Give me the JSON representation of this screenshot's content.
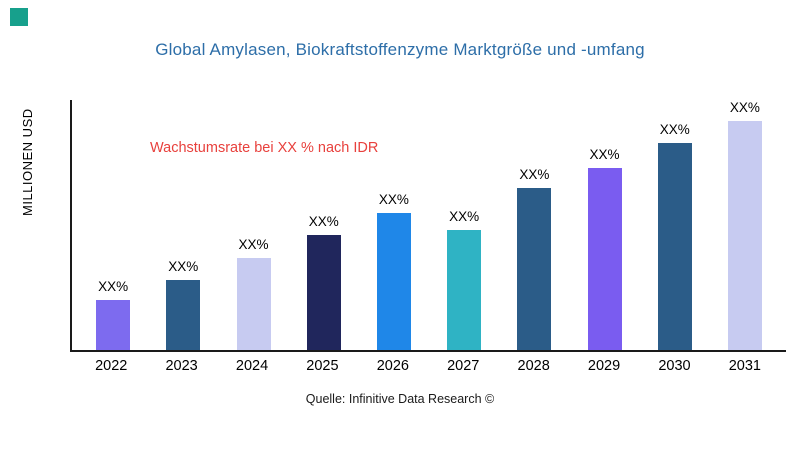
{
  "brand": {
    "square_color": "#17a08c"
  },
  "chart_data": {
    "type": "bar",
    "title": "Global Amylasen, Biokraftstoffenzyme Marktgröße und -umfang",
    "title_color": "#2d6ea8",
    "ylabel": "MILLIONEN USD",
    "xlabel": "",
    "annotation": "Wachstumsrate bei XX % nach IDR",
    "annotation_color": "#e8413d",
    "source": "Quelle: Infinitive Data Research ©",
    "categories": [
      "2022",
      "2023",
      "2024",
      "2025",
      "2026",
      "2027",
      "2028",
      "2029",
      "2030",
      "2031"
    ],
    "values": [
      20,
      28,
      37,
      46,
      55,
      48,
      65,
      73,
      83,
      92
    ],
    "bar_labels": [
      "XX%",
      "XX%",
      "XX%",
      "XX%",
      "XX%",
      "XX%",
      "XX%",
      "XX%",
      "XX%",
      "XX%"
    ],
    "bar_colors": [
      "#7d6bef",
      "#2b5c88",
      "#c7cbf1",
      "#20265c",
      "#1f87e8",
      "#2fb3c4",
      "#2b5c88",
      "#7a5cf0",
      "#2b5c88",
      "#c7cbf1"
    ],
    "ylim": [
      0,
      100
    ],
    "grid": false,
    "legend": false
  }
}
